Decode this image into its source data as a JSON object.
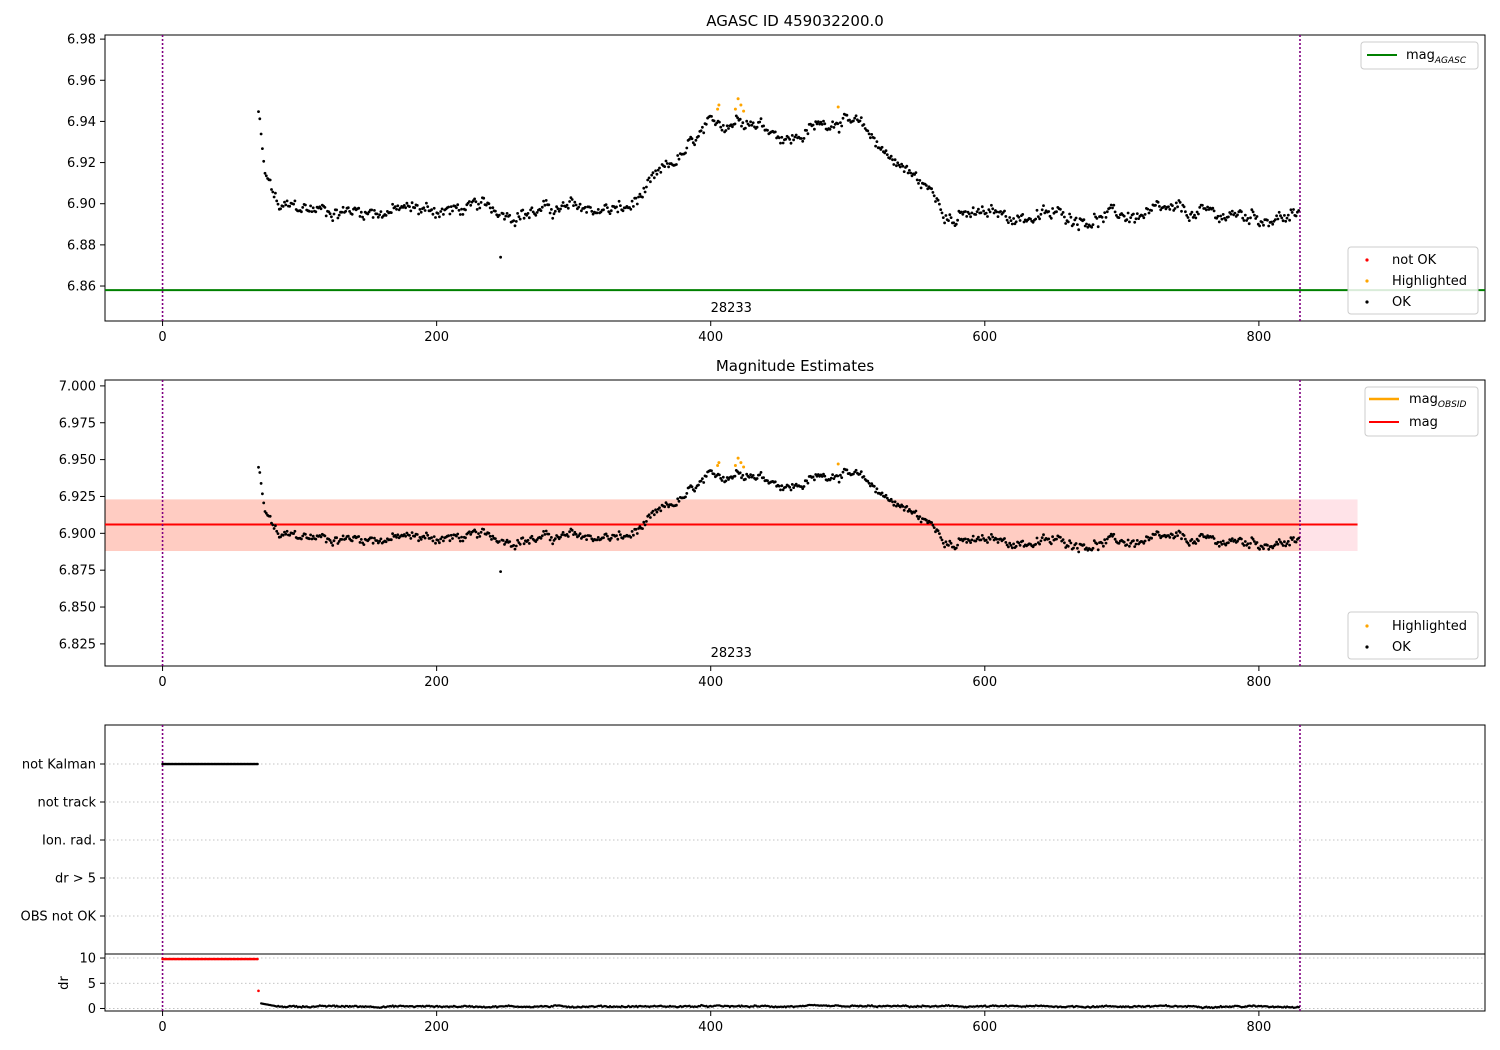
{
  "colors": {
    "ok": "#000000",
    "not_ok": "#ff0000",
    "highlighted": "#ffa500",
    "mag_agasc": "#008000",
    "mag_obsid": "#ffa500",
    "mag": "#ff0000",
    "vline": "#800080",
    "band_red": "#ffc0cb",
    "band_orange": "#ffa07a"
  },
  "chart_data": [
    {
      "id": "p1",
      "type": "scatter",
      "title": "AGASC ID 459032200.0",
      "xlim": [
        -42,
        965
      ],
      "ylim": [
        6.843,
        6.982
      ],
      "xticks": [
        0,
        200,
        400,
        600,
        800
      ],
      "yticks": [
        6.86,
        6.88,
        6.9,
        6.92,
        6.94,
        6.96,
        6.98
      ],
      "ytick_labels": [
        "6.86",
        "6.88",
        "6.90",
        "6.92",
        "6.94",
        "6.96",
        "6.98"
      ],
      "vlines": [
        0,
        830
      ],
      "hline": {
        "name": "mag_AGASC",
        "y": 6.858
      },
      "obsid_label": {
        "text": "28233",
        "x": 415
      },
      "series_x_range": [
        70,
        830
      ],
      "highlighted_points": [
        [
          405,
          6.946
        ],
        [
          406,
          6.948
        ],
        [
          418,
          6.946
        ],
        [
          420,
          6.951
        ],
        [
          422,
          6.948
        ],
        [
          424,
          6.945
        ],
        [
          493,
          6.947
        ]
      ],
      "legend_top": [
        {
          "label": "mag",
          "sub": "AGASC"
        }
      ],
      "legend_bottom": [
        "not OK",
        "Highlighted",
        "OK"
      ]
    },
    {
      "id": "p2",
      "type": "scatter",
      "title": "Magnitude Estimates",
      "xlim": [
        -42,
        965
      ],
      "ylim": [
        6.81,
        7.004
      ],
      "xticks": [
        0,
        200,
        400,
        600,
        800
      ],
      "yticks": [
        6.825,
        6.85,
        6.875,
        6.9,
        6.925,
        6.95,
        6.975,
        7.0
      ],
      "ytick_labels": [
        "6.825",
        "6.850",
        "6.875",
        "6.900",
        "6.925",
        "6.950",
        "6.975",
        "7.000"
      ],
      "vlines": [
        0,
        830
      ],
      "mag_line": 6.906,
      "band": [
        6.888,
        6.923
      ],
      "band_x_range": [
        -42,
        872
      ],
      "obsid_label": {
        "text": "28233",
        "x": 415
      },
      "series_x_range": [
        70,
        830
      ],
      "legend_top": [
        {
          "label": "mag",
          "sub": "OBSID"
        },
        {
          "label": "mag",
          "sub": ""
        }
      ],
      "legend_bottom": [
        "Highlighted",
        "OK"
      ]
    },
    {
      "id": "p3",
      "type": "scatter",
      "xlim": [
        -42,
        965
      ],
      "flag_labels": [
        "not Kalman",
        "not track",
        "Ion. rad.",
        "dr > 5",
        "OBS not OK"
      ],
      "flag_not_kalman_x_range": [
        0,
        70
      ],
      "dr_ylabel": "dr",
      "dr_yticks": [
        0,
        5,
        10
      ],
      "dr_ylim": [
        -0.5,
        10.8
      ],
      "dr_saturated_x_range": [
        0,
        70
      ],
      "dr_saturated_value": 9.8,
      "dr_outlier": [
        70,
        3.5
      ],
      "xticks": [
        0,
        200,
        400,
        600,
        800
      ],
      "vlines": [
        0,
        830
      ]
    }
  ]
}
